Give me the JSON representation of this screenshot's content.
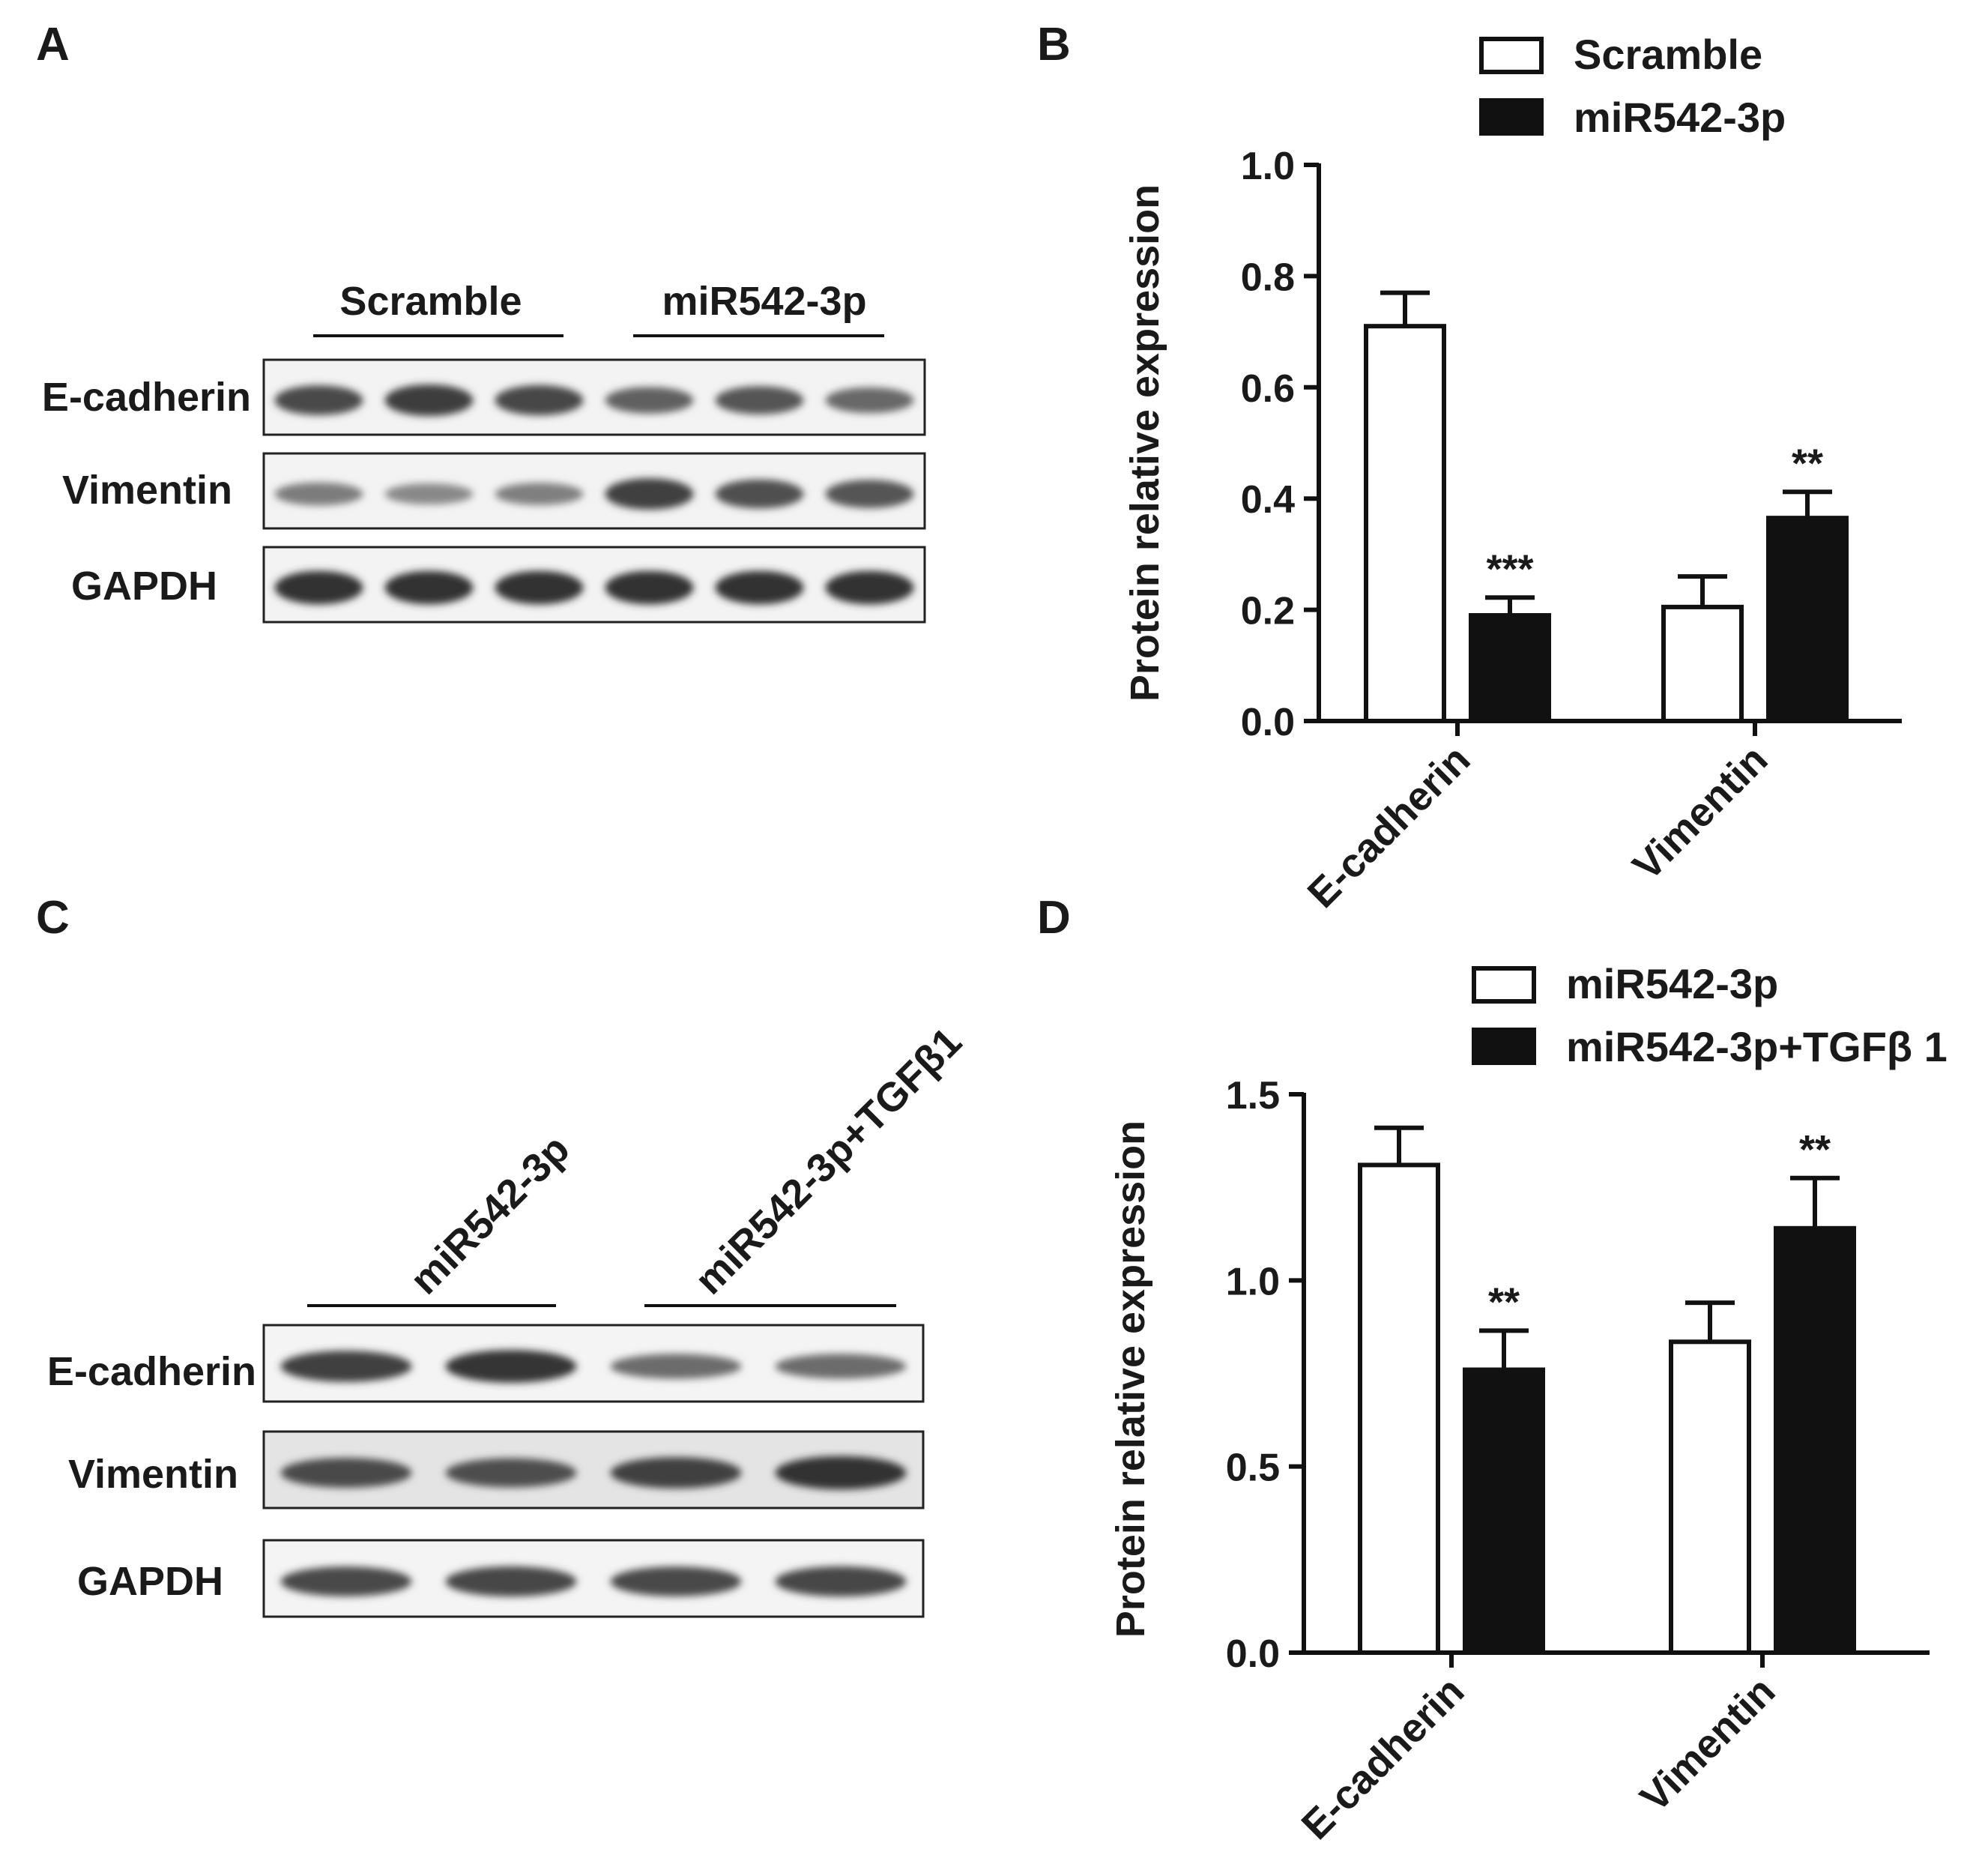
{
  "panel_letters": [
    "A",
    "B",
    "C",
    "D"
  ],
  "blot_a": {
    "groups": [
      "Scramble",
      "miR542-3p"
    ],
    "rows": [
      {
        "label": "E-cadherin",
        "intensities": [
          0.78,
          0.86,
          0.8,
          0.62,
          0.7,
          0.58
        ]
      },
      {
        "label": "Vimentin",
        "intensities": [
          0.45,
          0.36,
          0.42,
          0.85,
          0.74,
          0.7
        ]
      },
      {
        "label": "GAPDH",
        "intensities": [
          0.95,
          0.95,
          0.95,
          0.95,
          0.95,
          0.95
        ]
      }
    ]
  },
  "blot_c": {
    "groups": [
      "miR542-3p",
      "miR542-3p+TGFβ1"
    ],
    "rows": [
      {
        "label": "E-cadherin",
        "intensities": [
          0.85,
          0.92,
          0.55,
          0.55
        ]
      },
      {
        "label": "Vimentin",
        "intensities": [
          0.78,
          0.75,
          0.85,
          0.95
        ]
      },
      {
        "label": "GAPDH",
        "intensities": [
          0.78,
          0.8,
          0.78,
          0.8
        ]
      }
    ]
  },
  "chart_data": [
    {
      "type": "bar",
      "panel": "B",
      "categories": [
        "E-cadherin",
        "Vimentin"
      ],
      "ylabel": "Protein relative expression",
      "ylim": [
        0,
        1.0
      ],
      "yticks": [
        "0.0",
        "0.2",
        "0.4",
        "0.6",
        "0.8",
        "1.0"
      ],
      "legend_position": "top-right",
      "grid": false,
      "series": [
        {
          "name": "Scramble",
          "values": [
            0.71,
            0.205
          ],
          "errors": [
            0.06,
            0.055
          ],
          "significance": [
            "",
            ""
          ],
          "fill": "#ffffff"
        },
        {
          "name": "miR542-3p",
          "values": [
            0.19,
            0.365
          ],
          "errors": [
            0.032,
            0.047
          ],
          "significance": [
            "***",
            "**"
          ],
          "fill": "#111111"
        }
      ]
    },
    {
      "type": "bar",
      "panel": "D",
      "categories": [
        "E-cadherin",
        "Vimentin"
      ],
      "ylabel": "Protein relative expression",
      "ylim": [
        0,
        1.5
      ],
      "yticks": [
        "0.0",
        "0.5",
        "1.0",
        "1.5"
      ],
      "legend_position": "top-right",
      "grid": false,
      "series": [
        {
          "name": "miR542-3p",
          "values": [
            1.31,
            0.835
          ],
          "errors": [
            0.1,
            0.105
          ],
          "significance": [
            "",
            ""
          ],
          "fill": "#ffffff"
        },
        {
          "name": "miR542-3p+TGFβ 1",
          "values": [
            0.76,
            1.14
          ],
          "errors": [
            0.105,
            0.135
          ],
          "significance": [
            "**",
            "**"
          ],
          "fill": "#111111"
        }
      ]
    }
  ]
}
